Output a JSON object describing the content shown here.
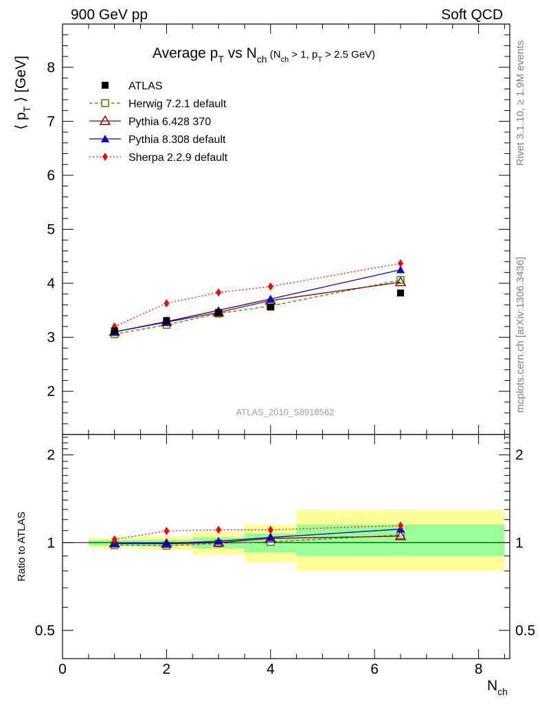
{
  "header": {
    "left": "900 GeV pp",
    "right": "Soft QCD"
  },
  "side_text": {
    "rivet": "Rivet 3.1.10, ≥ 1.9M events",
    "source": "mcplots.cern.ch [arXiv:1306.3436]"
  },
  "watermark": "ATLAS_2010_S8918562",
  "chart_data": {
    "type": "line",
    "title_main": "Average p",
    "title_main_sub": "T",
    "title_vs": " vs N",
    "title_vs_sub": "ch",
    "title_cut": " (N",
    "title_cut_sub1": "ch",
    "title_cut_mid": " > 1, p",
    "title_cut_sub2": "T",
    "title_cut_end": " > 2.5 GeV)",
    "ylabel_main": "⟨ p",
    "ylabel_main_sub": "T",
    "ylabel_main_end": " ⟩  [GeV]",
    "ylabel_ratio": "Ratio to ATLAS",
    "xlabel": "N",
    "xlabel_sub": "ch",
    "xlim": [
      0,
      8.6
    ],
    "ylim_main": [
      1.2,
      8.8
    ],
    "ylim_ratio": [
      0.4,
      2.35
    ],
    "ratio_log_scale": true,
    "x_ticks": [
      "0",
      "2",
      "4",
      "6",
      "8"
    ],
    "y_ticks_main": [
      "2",
      "3",
      "4",
      "5",
      "6",
      "7",
      "8"
    ],
    "y_ticks_ratio": [
      "0.5",
      "1",
      "2"
    ],
    "legend_position": "top-left",
    "bins": [
      [
        0.5,
        1.5
      ],
      [
        1.5,
        2.5
      ],
      [
        2.5,
        3.5
      ],
      [
        3.5,
        4.5
      ],
      [
        4.5,
        8.5
      ]
    ],
    "x": [
      1,
      2,
      3,
      4,
      6.5
    ],
    "data": {
      "name": "ATLAS",
      "values": [
        3.12,
        3.31,
        3.46,
        3.56,
        3.82
      ],
      "band_green": [
        [
          0.978,
          1.022
        ],
        [
          0.975,
          1.025
        ],
        [
          0.955,
          1.045
        ],
        [
          0.925,
          1.075
        ],
        [
          0.9,
          1.155
        ]
      ],
      "band_yellow": [
        [
          0.96,
          1.04
        ],
        [
          0.945,
          1.055
        ],
        [
          0.91,
          1.09
        ],
        [
          0.855,
          1.155
        ],
        [
          0.8,
          1.3
        ]
      ]
    },
    "series": [
      {
        "name": "Herwig 7.2.1 default",
        "values": [
          3.06,
          3.23,
          3.44,
          3.58,
          4.06
        ],
        "color": "#3c8c00",
        "dash": "dashed",
        "marker": "open-square"
      },
      {
        "name": "Pythia 6.428 370",
        "values": [
          3.1,
          3.28,
          3.46,
          3.68,
          4.02
        ],
        "color": "#8b0000",
        "dash": "solid",
        "marker": "open-triangle"
      },
      {
        "name": "Pythia 8.308 default",
        "values": [
          3.1,
          3.29,
          3.5,
          3.71,
          4.25
        ],
        "color": "#0000cc",
        "dash": "solid",
        "marker": "filled-triangle"
      },
      {
        "name": "Sherpa 2.2.9 default",
        "values": [
          3.2,
          3.63,
          3.83,
          3.94,
          4.37
        ],
        "color": "#ff0000",
        "dash": "dotted",
        "marker": "filled-diamond"
      }
    ],
    "colors": {
      "band_green": "#99ff99",
      "band_yellow": "#ffff99",
      "data_marker": "#000000"
    }
  }
}
